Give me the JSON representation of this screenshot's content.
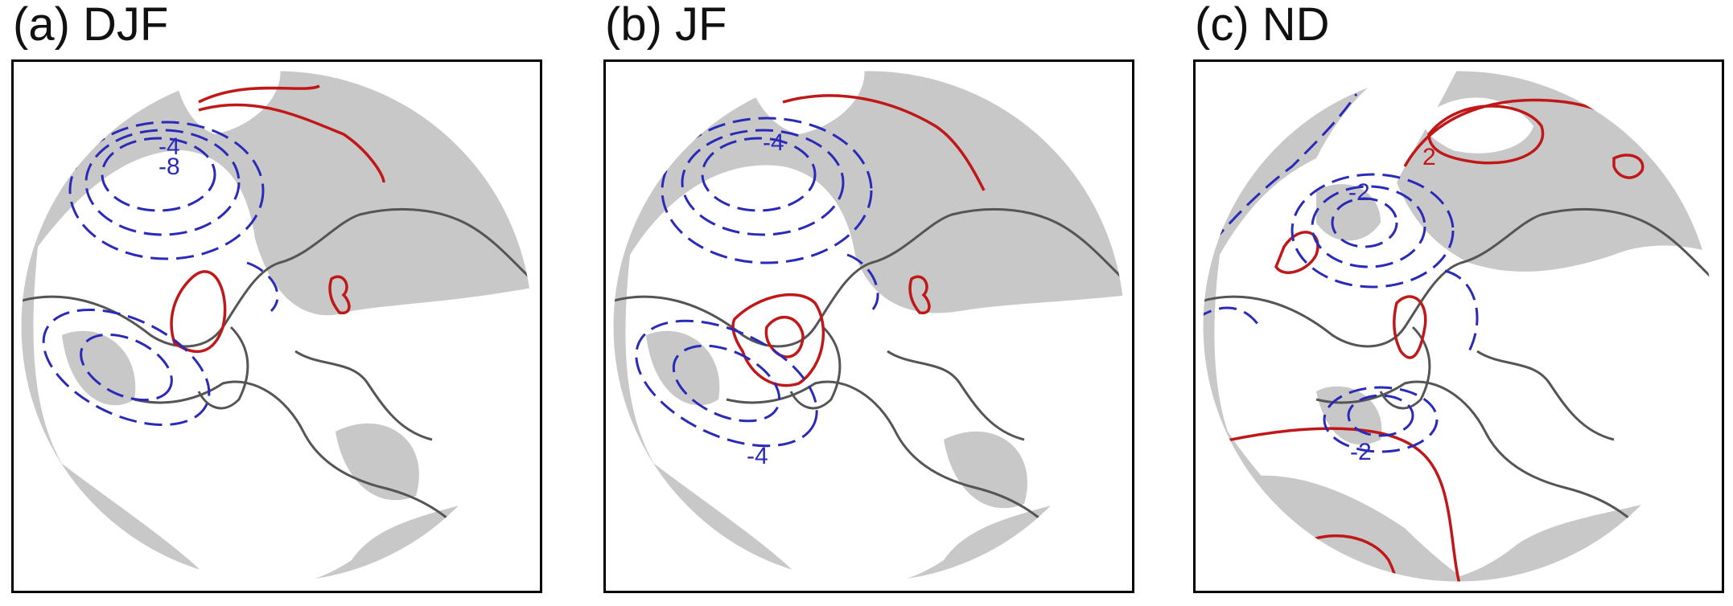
{
  "panels": [
    {
      "title": "(a) DJF",
      "labels": [
        "-4",
        "-8",
        "-4"
      ]
    },
    {
      "title": "(b) JF",
      "labels": [
        "-4",
        "-4"
      ]
    },
    {
      "title": "(c) ND",
      "labels": [
        "2",
        "-2",
        "-2"
      ]
    }
  ],
  "colors": {
    "shading": "#c8c8c8",
    "positive_contour": "#c01818",
    "negative_contour": "#2a2ab8",
    "coastline": "#555555",
    "frame": "#000000"
  }
}
